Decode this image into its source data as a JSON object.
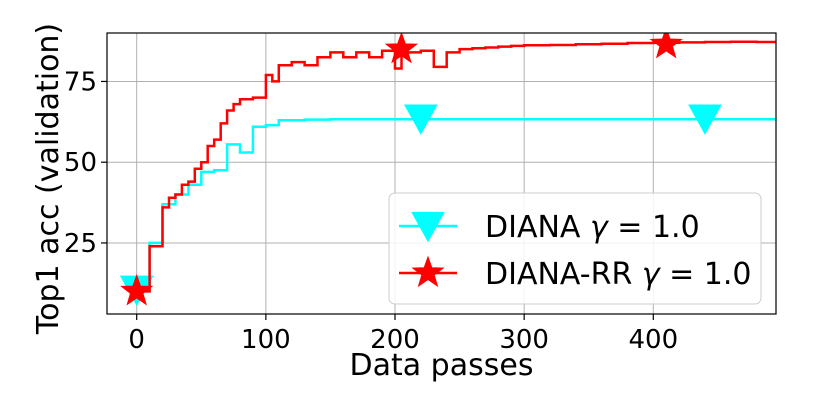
{
  "chart_data": {
    "type": "line",
    "xlabel": "Data passes",
    "ylabel": "Top1 acc (validation)",
    "xlim": [
      -23,
      495
    ],
    "ylim": [
      3,
      90
    ],
    "xticks": [
      0,
      100,
      200,
      300,
      400
    ],
    "xtick_labels": [
      "0",
      "100",
      "200",
      "300",
      "400"
    ],
    "yticks": [
      25,
      50,
      75
    ],
    "ytick_labels": [
      "25",
      "50",
      "75"
    ],
    "grid": true,
    "legend_position": "lower-right",
    "series": [
      {
        "name": "DIANA γ = 1.0",
        "legend_label": "DIANA",
        "legend_gamma": "1.0",
        "color": "#00ffff",
        "marker": "triangle-down",
        "x": [
          0,
          10,
          20,
          30,
          40,
          50,
          60,
          70,
          80,
          90,
          100,
          110,
          130,
          150,
          200,
          300,
          400,
          495
        ],
        "y": [
          10,
          25,
          37,
          40,
          43,
          47,
          47.5,
          55.5,
          53,
          61,
          61.5,
          63,
          63.2,
          63.3,
          63.3,
          63.3,
          63.3,
          63.3
        ],
        "marker_x": [
          0,
          220,
          440
        ],
        "marker_y": [
          10.5,
          63.5,
          63.5
        ]
      },
      {
        "name": "DIANA-RR γ = 1.0",
        "legend_label": "DIANA-RR",
        "legend_gamma": "1.0",
        "color": "#ff0000",
        "marker": "star",
        "x": [
          0,
          10,
          20,
          25,
          30,
          35,
          40,
          45,
          50,
          55,
          60,
          65,
          70,
          75,
          80,
          90,
          100,
          105,
          110,
          120,
          130,
          140,
          150,
          160,
          170,
          180,
          190,
          200,
          205,
          220,
          230,
          240,
          250,
          260,
          270,
          280,
          290,
          300,
          320,
          340,
          360,
          380,
          400,
          420,
          440,
          460,
          480,
          495
        ],
        "y": [
          10,
          24,
          36,
          39,
          40,
          43,
          44,
          48,
          50,
          55,
          57,
          62,
          66,
          68,
          69.5,
          70,
          77,
          75,
          80,
          81,
          80,
          82.5,
          84,
          82.5,
          84,
          82.5,
          84.5,
          79,
          84,
          84.5,
          79.5,
          84,
          85,
          85.3,
          85.5,
          85.8,
          86,
          86.2,
          86.3,
          86.5,
          86.7,
          86.9,
          87,
          87.1,
          87.2,
          87.3,
          87.2,
          87.3
        ],
        "marker_x": [
          0,
          205,
          410
        ],
        "marker_y": [
          10,
          85,
          86.5
        ]
      }
    ]
  }
}
